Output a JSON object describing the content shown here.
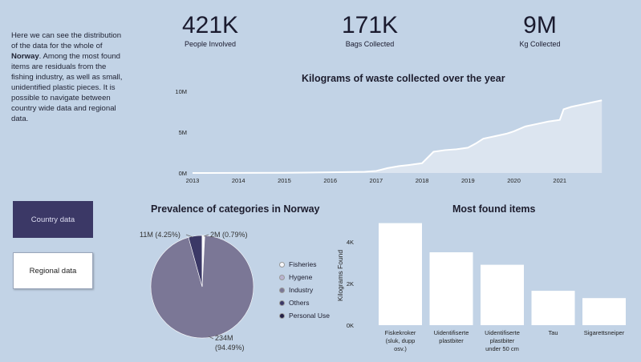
{
  "intro": {
    "text_before": "Here we can see the distribution of the data for the whole of ",
    "country": "Norway",
    "text_after": ". Among the most found items are residuals from the fishing industry, as well as small, unidentified plastic pieces. It is possible to navigate between country wide data and regional data."
  },
  "kpis": [
    {
      "value": "421K",
      "label": "People Involved"
    },
    {
      "value": "171K",
      "label": "Bags Collected"
    },
    {
      "value": "9M",
      "label": "Kg Collected"
    }
  ],
  "buttons": {
    "country": "Country data",
    "regional": "Regional data"
  },
  "colors": {
    "background": "#c2d3e6",
    "button_active": "#3b3866",
    "fisheries": "#f7f7fa",
    "hygene": "#b9b3cf",
    "industry": "#7b7796",
    "others": "#3b3866",
    "personal_use": "#232046"
  },
  "chart_data": [
    {
      "type": "area",
      "title": "Kilograms of waste collected over the year",
      "x": [
        "2013-01",
        "2014-01",
        "2015-01",
        "2016-01",
        "2016-10",
        "2017-01",
        "2017-04",
        "2017-07",
        "2017-10",
        "2018-01",
        "2018-04",
        "2018-07",
        "2018-10",
        "2019-01",
        "2019-03",
        "2019-05",
        "2019-08",
        "2019-11",
        "2020-01",
        "2020-04",
        "2020-07",
        "2020-10",
        "2021-01",
        "2021-02",
        "2021-04",
        "2021-07",
        "2021-10",
        "2021-12"
      ],
      "y": [
        0,
        0.01,
        0.02,
        0.08,
        0.15,
        0.25,
        0.6,
        0.85,
        1.0,
        1.2,
        2.6,
        2.8,
        2.9,
        3.1,
        3.6,
        4.2,
        4.5,
        4.8,
        5.1,
        5.7,
        6.0,
        6.3,
        6.5,
        7.8,
        8.1,
        8.4,
        8.7,
        8.9
      ],
      "y_unit": "M",
      "x_ticks": [
        "2013",
        "2014",
        "2015",
        "2016",
        "2017",
        "2018",
        "2019",
        "2020",
        "2021"
      ],
      "y_ticks": [
        "0M",
        "5M",
        "10M"
      ],
      "xlim": [
        "2013-01",
        "2022-01"
      ],
      "ylim": [
        0,
        10
      ]
    },
    {
      "type": "pie",
      "title": "Prevalence of categories in Norway",
      "slices": [
        {
          "name": "Fisheries",
          "value": 2,
          "percent": 0.79,
          "label": "2M (0.79%)"
        },
        {
          "name": "Hygene",
          "value": 0.1,
          "percent": 0.03,
          "label": ""
        },
        {
          "name": "Industry",
          "value": 234,
          "percent": 94.49,
          "label_value": "234M",
          "label_pct": "(94.49%)"
        },
        {
          "name": "Others",
          "value": 11,
          "percent": 4.25,
          "label": "11M (4.25%)"
        },
        {
          "name": "Personal Use",
          "value": 0.1,
          "percent": 0.03,
          "label": ""
        }
      ],
      "legend": [
        "Fisheries",
        "Hygene",
        "Industry",
        "Others",
        "Personal Use"
      ],
      "legend_position": "right"
    },
    {
      "type": "bar",
      "title": "Most found items",
      "ylabel": "Kilograms Found",
      "y_ticks": [
        "0K",
        "2K",
        "4K"
      ],
      "ylim": [
        0,
        5
      ],
      "categories": [
        [
          "Fiskekroker",
          "(sluk, dupp",
          "osv.)"
        ],
        [
          "Uidentifiserte",
          "plastbiter"
        ],
        [
          "Uidentifiserte",
          "plastbiter",
          "under 50 cm"
        ],
        [
          "Tau"
        ],
        [
          "Sigarettsneiper"
        ]
      ],
      "values": [
        4.9,
        3.5,
        2.9,
        1.65,
        1.3
      ],
      "value_unit": "K"
    }
  ]
}
